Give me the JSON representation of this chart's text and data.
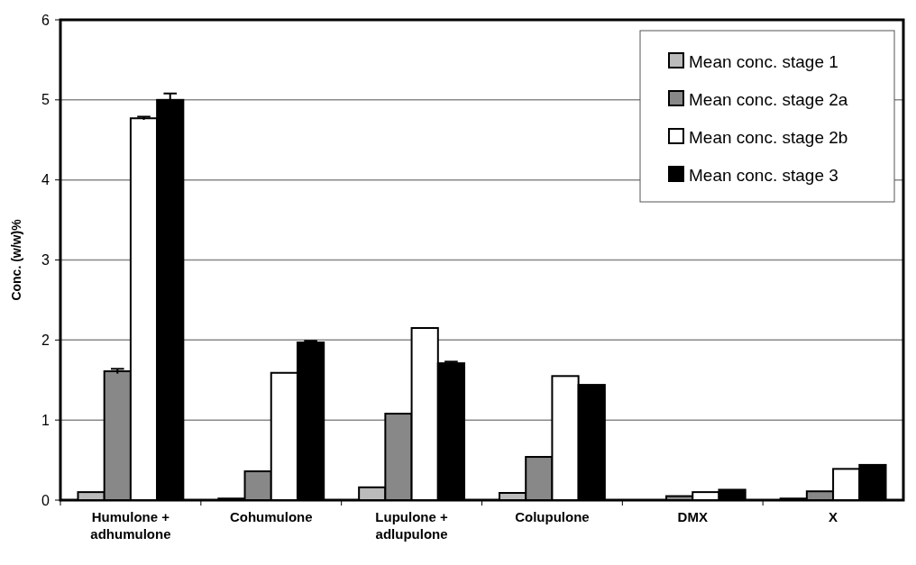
{
  "chart_data": {
    "type": "bar",
    "ylabel": "Conc. (w/w)%",
    "categories": [
      "Humulone + adhumulone",
      "Cohumulone",
      "Lupulone + adlupulone",
      "Colupulone",
      "DMX",
      "X"
    ],
    "series": [
      {
        "name": "Mean conc. stage 1",
        "color": "#bbbbbb",
        "values": [
          0.1,
          0.02,
          0.16,
          0.09,
          0,
          0.02
        ]
      },
      {
        "name": "Mean conc. stage 2a",
        "color": "#888888",
        "values": [
          1.61,
          0.36,
          1.08,
          0.54,
          0.05,
          0.11
        ],
        "errors": [
          0.03,
          null,
          null,
          null,
          null,
          null
        ]
      },
      {
        "name": "Mean conc. stage 2b",
        "color": "#ffffff",
        "values": [
          4.77,
          1.59,
          2.15,
          1.55,
          0.1,
          0.39
        ],
        "errors": [
          0.02,
          null,
          null,
          null,
          null,
          null
        ]
      },
      {
        "name": "Mean conc. stage 3",
        "color": "#000000",
        "values": [
          5.0,
          1.97,
          1.71,
          1.44,
          0.13,
          0.44
        ],
        "errors": [
          0.08,
          0.02,
          0.02,
          null,
          null,
          null
        ]
      }
    ],
    "ylim": [
      0,
      6
    ],
    "yticks": [
      0,
      1,
      2,
      3,
      4,
      5,
      6
    ],
    "grid": "y",
    "legend": "top right"
  }
}
